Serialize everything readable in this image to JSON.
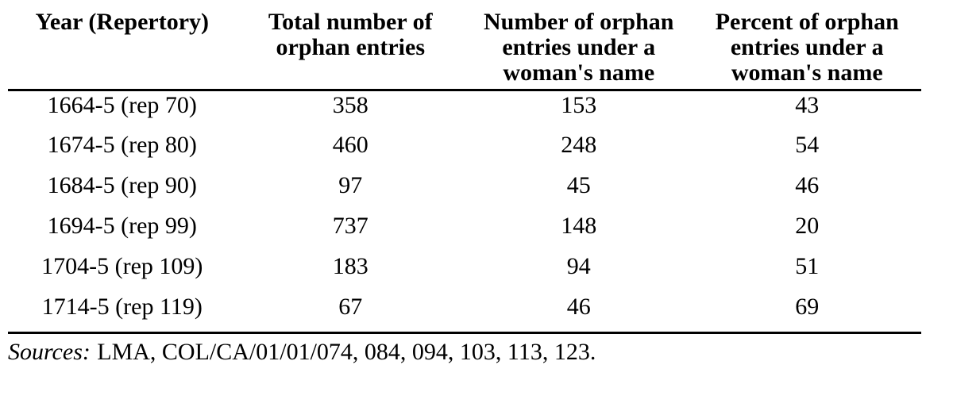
{
  "table": {
    "columns": [
      "Year (Repertory)",
      "Total number of\norphan entries",
      "Number of orphan\nentries under a\nwoman's name",
      "Percent of orphan\nentries under a\nwoman's name"
    ],
    "rows": [
      {
        "year": "1664-5 (rep 70)",
        "total": "358",
        "women": "153",
        "percent": "43"
      },
      {
        "year": "1674-5 (rep 80)",
        "total": "460",
        "women": "248",
        "percent": "54"
      },
      {
        "year": "1684-5 (rep 90)",
        "total": "97",
        "women": "45",
        "percent": "46"
      },
      {
        "year": "1694-5 (rep 99)",
        "total": "737",
        "women": "148",
        "percent": "20"
      },
      {
        "year": "1704-5 (rep 109)",
        "total": "183",
        "women": "94",
        "percent": "51"
      },
      {
        "year": "1714-5 (rep 119)",
        "total": "67",
        "women": "46",
        "percent": "69"
      }
    ]
  },
  "sources": {
    "label": "Sources:",
    "text": "LMA, COL/CA/01/01/074, 084, 094, 103, 113, 123."
  },
  "colors": {
    "text": "#000000",
    "background": "#ffffff",
    "rule": "#000000"
  }
}
